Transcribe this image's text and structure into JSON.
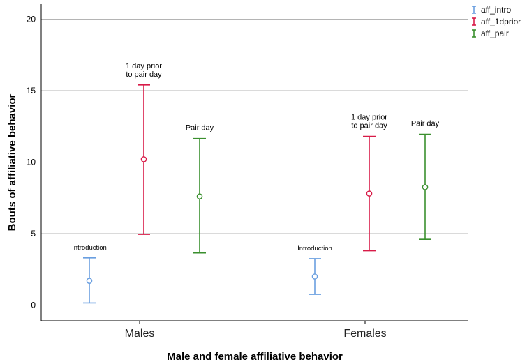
{
  "chart_data": {
    "type": "errorbar",
    "title": "",
    "xlabel": "Male and female affiliative behavior",
    "ylabel": "Bouts of affiliative behavior",
    "ylim": [
      -1,
      21
    ],
    "yticks": [
      0,
      5,
      10,
      15,
      20
    ],
    "grid": "horizontal",
    "legend_position": "top-right",
    "categories": [
      "Males",
      "Females"
    ],
    "series": [
      {
        "name": "aff_intro",
        "color": "#6a9fe0",
        "points": [
          {
            "category": "Males",
            "mean": 1.7,
            "lower": 0.15,
            "upper": 3.3,
            "annotation": [
              "Introduction"
            ]
          },
          {
            "category": "Females",
            "mean": 2.0,
            "lower": 0.75,
            "upper": 3.25,
            "annotation": [
              "Introduction"
            ]
          }
        ]
      },
      {
        "name": "aff_1dprior",
        "color": "#d81b48",
        "points": [
          {
            "category": "Males",
            "mean": 10.2,
            "lower": 4.95,
            "upper": 15.4,
            "annotation": [
              "1 day prior",
              "to pair day"
            ]
          },
          {
            "category": "Females",
            "mean": 7.8,
            "lower": 3.8,
            "upper": 11.8,
            "annotation": [
              "1 day prior",
              "to pair day"
            ]
          }
        ]
      },
      {
        "name": "aff_pair",
        "color": "#3a8f2e",
        "points": [
          {
            "category": "Males",
            "mean": 7.6,
            "lower": 3.65,
            "upper": 11.65,
            "annotation": [
              "Pair day"
            ]
          },
          {
            "category": "Females",
            "mean": 8.25,
            "lower": 4.6,
            "upper": 11.95,
            "annotation": [
              "Pair day"
            ]
          }
        ]
      }
    ]
  }
}
